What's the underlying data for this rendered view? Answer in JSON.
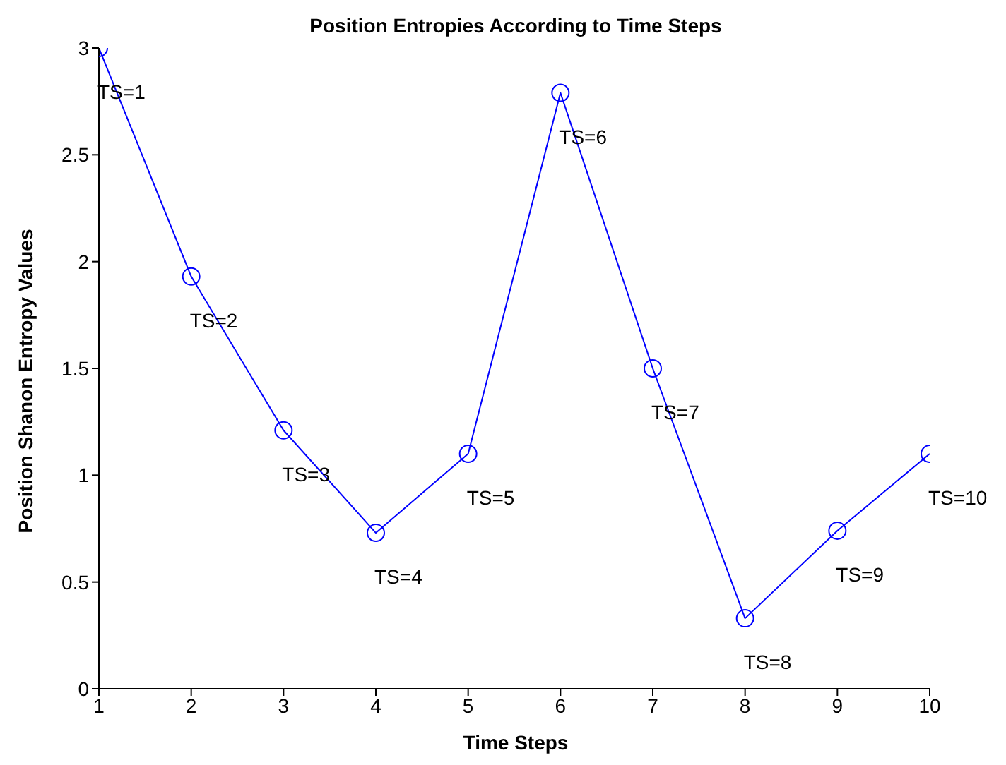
{
  "chart_data": {
    "type": "line",
    "title": "Position Entropies According to Time Steps",
    "xlabel": "Time Steps",
    "ylabel": "Position Shanon Entropy Values",
    "x": [
      1,
      2,
      3,
      4,
      5,
      6,
      7,
      8,
      9,
      10
    ],
    "series": [
      {
        "color": "#0000ff",
        "values": [
          3.0,
          1.93,
          1.21,
          0.73,
          1.1,
          2.79,
          1.5,
          0.33,
          0.74,
          1.1
        ]
      }
    ],
    "xlim": [
      1,
      10
    ],
    "xticks": [
      1,
      2,
      3,
      4,
      5,
      6,
      7,
      8,
      9,
      10
    ],
    "ylim": [
      0,
      3
    ],
    "yticks": [
      0,
      0.5,
      1,
      1.5,
      2,
      2.5,
      3
    ],
    "grid": false,
    "legend": false,
    "marker": "circle",
    "line_style": "solid",
    "annotations": [
      {
        "text": "TS=1",
        "x": 1,
        "y": 3.0
      },
      {
        "text": "TS=2",
        "x": 2,
        "y": 1.93
      },
      {
        "text": "TS=3",
        "x": 3,
        "y": 1.21
      },
      {
        "text": "TS=4",
        "x": 4,
        "y": 0.73
      },
      {
        "text": "TS=5",
        "x": 5,
        "y": 1.1
      },
      {
        "text": "TS=6",
        "x": 6,
        "y": 2.79
      },
      {
        "text": "TS=7",
        "x": 7,
        "y": 1.5
      },
      {
        "text": "TS=8",
        "x": 8,
        "y": 0.33
      },
      {
        "text": "TS=9",
        "x": 9,
        "y": 0.74
      },
      {
        "text": "TS=10",
        "x": 10,
        "y": 1.1
      }
    ]
  }
}
